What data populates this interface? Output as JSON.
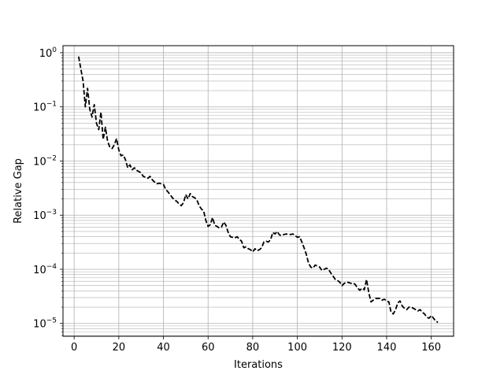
{
  "chart_data": {
    "type": "line",
    "title": "",
    "xlabel": "Iterations",
    "ylabel": "Relative Gap",
    "xlim": [
      -5,
      170
    ],
    "ylim": [
      5.8e-06,
      1.35
    ],
    "yscale": "log",
    "grid": "major-and-minor",
    "x_ticks": [
      0,
      20,
      40,
      60,
      80,
      100,
      120,
      140,
      160
    ],
    "x_tick_labels": [
      "0",
      "20",
      "40",
      "60",
      "80",
      "100",
      "120",
      "140",
      "160"
    ],
    "y_ticks": [
      1e-05,
      0.0001,
      0.001,
      0.01,
      0.1,
      1
    ],
    "y_tick_labels": [
      {
        "base": "10",
        "exp": "−5"
      },
      {
        "base": "10",
        "exp": "−4"
      },
      {
        "base": "10",
        "exp": "−3"
      },
      {
        "base": "10",
        "exp": "−2"
      },
      {
        "base": "10",
        "exp": "−1"
      },
      {
        "base": "10",
        "exp": "0"
      }
    ],
    "series": [
      {
        "style": "dashed",
        "color": "#000000",
        "points": [
          [
            2,
            0.85
          ],
          [
            3,
            0.5
          ],
          [
            4,
            0.3
          ],
          [
            5,
            0.1
          ],
          [
            6,
            0.22
          ],
          [
            7,
            0.09
          ],
          [
            8,
            0.065
          ],
          [
            9,
            0.11
          ],
          [
            10,
            0.05
          ],
          [
            11,
            0.038
          ],
          [
            12,
            0.08
          ],
          [
            13,
            0.025
          ],
          [
            14,
            0.042
          ],
          [
            15,
            0.023
          ],
          [
            16,
            0.018
          ],
          [
            17,
            0.017
          ],
          [
            18,
            0.02
          ],
          [
            19,
            0.026
          ],
          [
            20,
            0.016
          ],
          [
            21,
            0.0125
          ],
          [
            22,
            0.013
          ],
          [
            23,
            0.0105
          ],
          [
            24,
            0.0075
          ],
          [
            25,
            0.0085
          ],
          [
            26,
            0.0069
          ],
          [
            27,
            0.0075
          ],
          [
            28,
            0.0067
          ],
          [
            29,
            0.0064
          ],
          [
            30,
            0.006
          ],
          [
            31,
            0.0052
          ],
          [
            32,
            0.005
          ],
          [
            33,
            0.0048
          ],
          [
            34,
            0.0052
          ],
          [
            35,
            0.0045
          ],
          [
            36,
            0.0041
          ],
          [
            37,
            0.0038
          ],
          [
            38,
            0.0039
          ],
          [
            39,
            0.0038
          ],
          [
            40,
            0.0037
          ],
          [
            41,
            0.003
          ],
          [
            42,
            0.0027
          ],
          [
            43,
            0.0024
          ],
          [
            44,
            0.0021
          ],
          [
            45,
            0.0019
          ],
          [
            46,
            0.0018
          ],
          [
            47,
            0.0016
          ],
          [
            48,
            0.0015
          ],
          [
            49,
            0.0017
          ],
          [
            50,
            0.0024
          ],
          [
            51,
            0.002
          ],
          [
            52,
            0.0025
          ],
          [
            53,
            0.0022
          ],
          [
            54,
            0.0021
          ],
          [
            55,
            0.0019
          ],
          [
            56,
            0.0015
          ],
          [
            57,
            0.0013
          ],
          [
            58,
            0.0012
          ],
          [
            59,
            0.0008
          ],
          [
            60,
            0.00062
          ],
          [
            61,
            0.00067
          ],
          [
            62,
            0.0009
          ],
          [
            63,
            0.00065
          ],
          [
            64,
            0.00062
          ],
          [
            65,
            0.00058
          ],
          [
            66,
            0.0006
          ],
          [
            67,
            0.00075
          ],
          [
            68,
            0.00065
          ],
          [
            69,
            0.00048
          ],
          [
            70,
            0.0004
          ],
          [
            71,
            0.00039
          ],
          [
            72,
            0.00038
          ],
          [
            73,
            0.0004
          ],
          [
            74,
            0.00036
          ],
          [
            75,
            0.00033
          ],
          [
            76,
            0.00025
          ],
          [
            77,
            0.00026
          ],
          [
            78,
            0.00024
          ],
          [
            79,
            0.00023
          ],
          [
            80,
            0.00021
          ],
          [
            81,
            0.00024
          ],
          [
            82,
            0.00022
          ],
          [
            83,
            0.00023
          ],
          [
            84,
            0.00025
          ],
          [
            85,
            0.00032
          ],
          [
            86,
            0.00033
          ],
          [
            87,
            0.00032
          ],
          [
            88,
            0.00035
          ],
          [
            89,
            0.00048
          ],
          [
            90,
            0.00045
          ],
          [
            91,
            0.0005
          ],
          [
            92,
            0.00043
          ],
          [
            93,
            0.00042
          ],
          [
            94,
            0.00044
          ],
          [
            95,
            0.00045
          ],
          [
            96,
            0.00044
          ],
          [
            97,
            0.00044
          ],
          [
            98,
            0.00045
          ],
          [
            99,
            0.00042
          ],
          [
            100,
            0.00039
          ],
          [
            101,
            0.0004
          ],
          [
            102,
            0.00032
          ],
          [
            103,
            0.00025
          ],
          [
            104,
            0.00019
          ],
          [
            105,
            0.00013
          ],
          [
            106,
            0.00011
          ],
          [
            107,
            0.000105
          ],
          [
            108,
            0.00012
          ],
          [
            109,
            0.000115
          ],
          [
            110,
            0.00011
          ],
          [
            111,
            9.5e-05
          ],
          [
            112,
            0.0001
          ],
          [
            113,
            0.000105
          ],
          [
            114,
            0.0001
          ],
          [
            115,
            8.5e-05
          ],
          [
            116,
            7.5e-05
          ],
          [
            117,
            6.5e-05
          ],
          [
            118,
            6.2e-05
          ],
          [
            119,
            5.8e-05
          ],
          [
            120,
            5e-05
          ],
          [
            121,
            5.5e-05
          ],
          [
            122,
            5.8e-05
          ],
          [
            123,
            5.7e-05
          ],
          [
            124,
            5.5e-05
          ],
          [
            125,
            5.6e-05
          ],
          [
            126,
            5.2e-05
          ],
          [
            127,
            4.5e-05
          ],
          [
            128,
            4.1e-05
          ],
          [
            129,
            4.5e-05
          ],
          [
            130,
            4.2e-05
          ],
          [
            131,
            6.5e-05
          ],
          [
            132,
            3.7e-05
          ],
          [
            133,
            2.5e-05
          ],
          [
            134,
            2.7e-05
          ],
          [
            135,
            2.9e-05
          ],
          [
            136,
            2.9e-05
          ],
          [
            137,
            2.9e-05
          ],
          [
            138,
            2.7e-05
          ],
          [
            139,
            2.8e-05
          ],
          [
            140,
            2.6e-05
          ],
          [
            141,
            2.5e-05
          ],
          [
            142,
            1.6e-05
          ],
          [
            143,
            1.5e-05
          ],
          [
            144,
            1.8e-05
          ],
          [
            145,
            2.4e-05
          ],
          [
            146,
            2.6e-05
          ],
          [
            147,
            2.1e-05
          ],
          [
            148,
            1.9e-05
          ],
          [
            149,
            1.8e-05
          ],
          [
            150,
            2e-05
          ],
          [
            151,
            2e-05
          ],
          [
            152,
            1.9e-05
          ],
          [
            153,
            1.8e-05
          ],
          [
            154,
            1.7e-05
          ],
          [
            155,
            1.8e-05
          ],
          [
            156,
            1.6e-05
          ],
          [
            157,
            1.5e-05
          ],
          [
            158,
            1.3e-05
          ],
          [
            159,
            1.25e-05
          ],
          [
            160,
            1.4e-05
          ],
          [
            161,
            1.25e-05
          ],
          [
            162,
            1.1e-05
          ],
          [
            163,
            1.05e-05
          ]
        ]
      }
    ]
  }
}
